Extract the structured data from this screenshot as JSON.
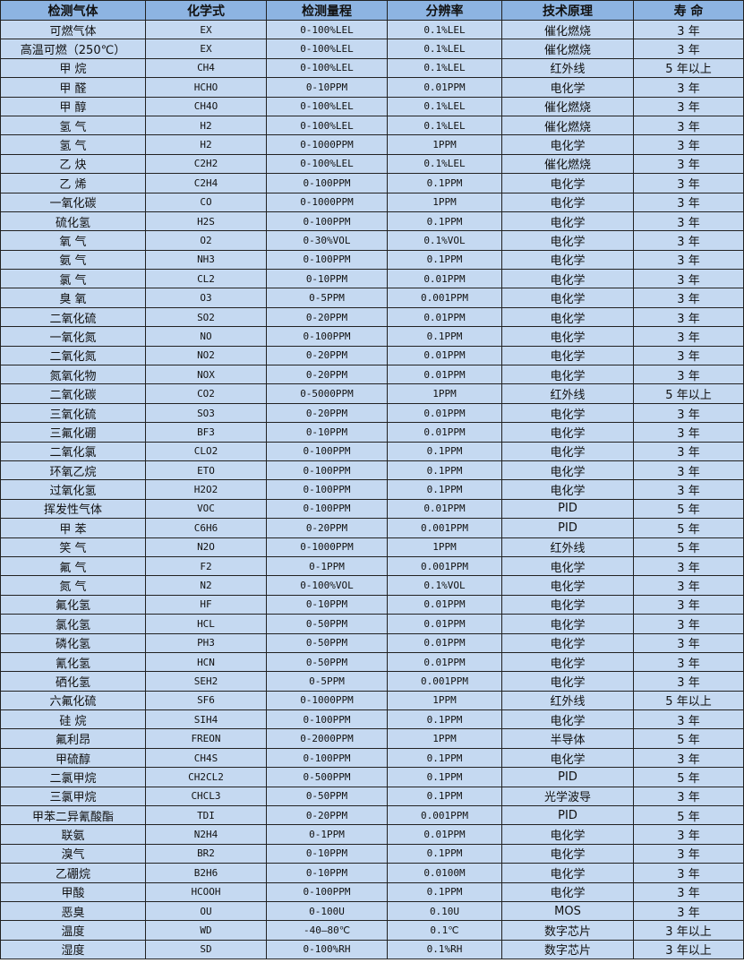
{
  "table": {
    "headers": [
      "检测气体",
      "化学式",
      "检测量程",
      "分辨率",
      "技术原理",
      "寿 命"
    ],
    "rows": [
      [
        "可燃气体",
        "EX",
        "0-100%LEL",
        "0.1%LEL",
        "催化燃烧",
        "3 年"
      ],
      [
        "高温可燃（250℃）",
        "EX",
        "0-100%LEL",
        "0.1%LEL",
        "催化燃烧",
        "3 年"
      ],
      [
        "甲 烷",
        "CH4",
        "0-100%LEL",
        "0.1%LEL",
        "红外线",
        "5 年以上"
      ],
      [
        "甲 醛",
        "HCHO",
        "0-10PPM",
        "0.01PPM",
        "电化学",
        "3 年"
      ],
      [
        "甲 醇",
        "CH4O",
        "0-100%LEL",
        "0.1%LEL",
        "催化燃烧",
        "3 年"
      ],
      [
        "氢 气",
        "H2",
        "0-100%LEL",
        "0.1%LEL",
        "催化燃烧",
        "3 年"
      ],
      [
        "氢 气",
        "H2",
        "0-1000PPM",
        "1PPM",
        "电化学",
        "3 年"
      ],
      [
        "乙 炔",
        "C2H2",
        "0-100%LEL",
        "0.1%LEL",
        "催化燃烧",
        "3 年"
      ],
      [
        "乙 烯",
        "C2H4",
        "0-100PPM",
        "0.1PPM",
        "电化学",
        "3 年"
      ],
      [
        "一氧化碳",
        "CO",
        "0-1000PPM",
        "1PPM",
        "电化学",
        "3 年"
      ],
      [
        "硫化氢",
        "H2S",
        "0-100PPM",
        "0.1PPM",
        "电化学",
        "3 年"
      ],
      [
        "氧 气",
        "O2",
        "0-30%VOL",
        "0.1%VOL",
        "电化学",
        "3 年"
      ],
      [
        "氨 气",
        "NH3",
        "0-100PPM",
        "0.1PPM",
        "电化学",
        "3 年"
      ],
      [
        "氯 气",
        "CL2",
        "0-10PPM",
        "0.01PPM",
        "电化学",
        "3 年"
      ],
      [
        "臭 氧",
        "O3",
        "0-5PPM",
        "0.001PPM",
        "电化学",
        "3 年"
      ],
      [
        "二氧化硫",
        "SO2",
        "0-20PPM",
        "0.01PPM",
        "电化学",
        "3 年"
      ],
      [
        "一氧化氮",
        "NO",
        "0-100PPM",
        "0.1PPM",
        "电化学",
        "3 年"
      ],
      [
        "二氧化氮",
        "NO2",
        "0-20PPM",
        "0.01PPM",
        "电化学",
        "3 年"
      ],
      [
        "氮氧化物",
        "NOX",
        "0-20PPM",
        "0.01PPM",
        "电化学",
        "3 年"
      ],
      [
        "二氧化碳",
        "CO2",
        "0-5000PPM",
        "1PPM",
        "红外线",
        "5 年以上"
      ],
      [
        "三氧化硫",
        "SO3",
        "0-20PPM",
        "0.01PPM",
        "电化学",
        "3 年"
      ],
      [
        "三氟化硼",
        "BF3",
        "0-10PPM",
        "0.01PPM",
        "电化学",
        "3 年"
      ],
      [
        "二氧化氯",
        "CLO2",
        "0-100PPM",
        "0.1PPM",
        "电化学",
        "3 年"
      ],
      [
        "环氧乙烷",
        "ETO",
        "0-100PPM",
        "0.1PPM",
        "电化学",
        "3 年"
      ],
      [
        "过氧化氢",
        "H2O2",
        "0-100PPM",
        "0.1PPM",
        "电化学",
        "3 年"
      ],
      [
        "挥发性气体",
        "VOC",
        "0-100PPM",
        "0.01PPM",
        "PID",
        "5 年"
      ],
      [
        "甲 苯",
        "C6H6",
        "0-20PPM",
        "0.001PPM",
        "PID",
        "5 年"
      ],
      [
        "笑 气",
        "N2O",
        "0-1000PPM",
        "1PPM",
        "红外线",
        "5 年"
      ],
      [
        "氟 气",
        "F2",
        "0-1PPM",
        "0.001PPM",
        "电化学",
        "3 年"
      ],
      [
        "氮 气",
        "N2",
        "0-100%VOL",
        "0.1%VOL",
        "电化学",
        "3 年"
      ],
      [
        "氟化氢",
        "HF",
        "0-10PPM",
        "0.01PPM",
        "电化学",
        "3 年"
      ],
      [
        "氯化氢",
        "HCL",
        "0-50PPM",
        "0.01PPM",
        "电化学",
        "3 年"
      ],
      [
        "磷化氢",
        "PH3",
        "0-50PPM",
        "0.01PPM",
        "电化学",
        "3 年"
      ],
      [
        "氰化氢",
        "HCN",
        "0-50PPM",
        "0.01PPM",
        "电化学",
        "3 年"
      ],
      [
        "硒化氢",
        "SEH2",
        "0-5PPM",
        "0.001PPM",
        "电化学",
        "3 年"
      ],
      [
        "六氟化硫",
        "SF6",
        "0-1000PPM",
        "1PPM",
        "红外线",
        "5 年以上"
      ],
      [
        "硅 烷",
        "SIH4",
        "0-100PPM",
        "0.1PPM",
        "电化学",
        "3 年"
      ],
      [
        "氟利昂",
        "FREON",
        "0-2000PPM",
        "1PPM",
        "半导体",
        "5 年"
      ],
      [
        "甲硫醇",
        "CH4S",
        "0-100PPM",
        "0.1PPM",
        "电化学",
        "3 年"
      ],
      [
        "二氯甲烷",
        "CH2CL2",
        "0-500PPM",
        "0.1PPM",
        "PID",
        "5 年"
      ],
      [
        "三氯甲烷",
        "CHCL3",
        "0-50PPM",
        "0.1PPM",
        "光学波导",
        "3 年"
      ],
      [
        "甲苯二异氰酸酯",
        "TDI",
        "0-20PPM",
        "0.001PPM",
        "PID",
        "5 年"
      ],
      [
        "联氨",
        "N2H4",
        "0-1PPM",
        "0.01PPM",
        "电化学",
        "3 年"
      ],
      [
        "溴气",
        "BR2",
        "0-10PPM",
        "0.1PPM",
        "电化学",
        "3 年"
      ],
      [
        "乙硼烷",
        "B2H6",
        "0-10PPM",
        "0.0100M",
        "电化学",
        "3 年"
      ],
      [
        "甲酸",
        "HCOOH",
        "0-100PPM",
        "0.1PPM",
        "电化学",
        "3 年"
      ],
      [
        "恶臭",
        "OU",
        "0-100U",
        "0.10U",
        "MOS",
        "3 年"
      ],
      [
        "温度",
        "WD",
        "-40—80℃",
        "0.1℃",
        "数字芯片",
        "3 年以上"
      ],
      [
        "湿度",
        "SD",
        "0-100%RH",
        "0.1%RH",
        "数字芯片",
        "3 年以上"
      ]
    ]
  },
  "colors": {
    "header_bg": "#8db4e2",
    "row_bg": "#c5d9f1",
    "border": "#222222"
  }
}
